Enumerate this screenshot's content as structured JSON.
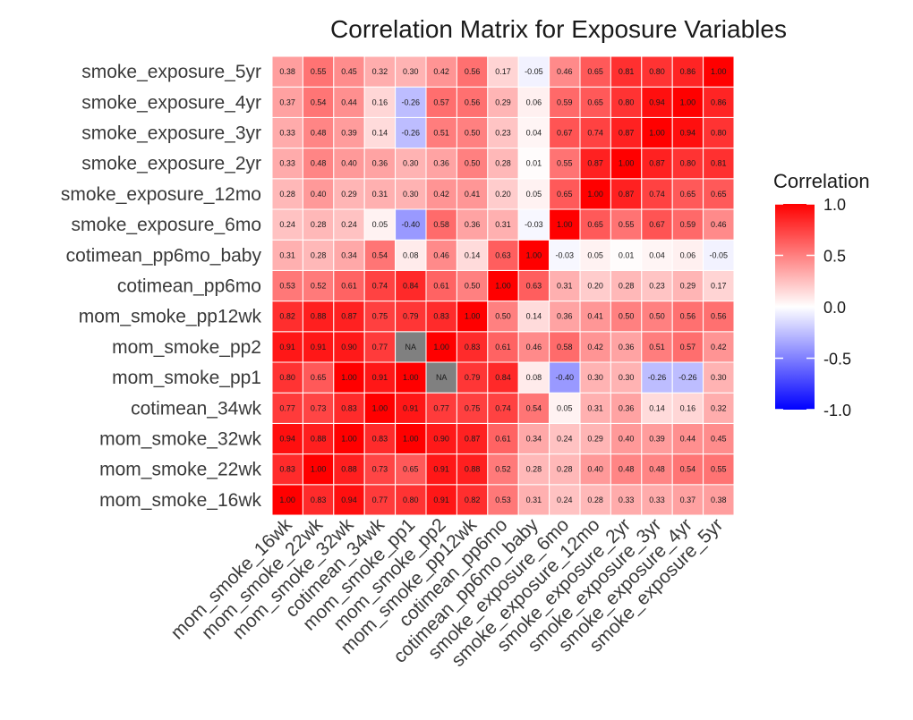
{
  "chart_data": {
    "type": "heatmap",
    "title": "Correlation Matrix for Exposure Variables",
    "variables": [
      "mom_smoke_16wk",
      "mom_smoke_22wk",
      "mom_smoke_32wk",
      "cotimean_34wk",
      "mom_smoke_pp1",
      "mom_smoke_pp2",
      "mom_smoke_pp12wk",
      "cotimean_pp6mo",
      "cotimean_pp6mo_baby",
      "smoke_exposure_6mo",
      "smoke_exposure_12mo",
      "smoke_exposure_2yr",
      "smoke_exposure_3yr",
      "smoke_exposure_4yr",
      "smoke_exposure_5yr"
    ],
    "cells": [
      [
        "1.00",
        "0.83",
        "0.94",
        "0.77",
        "0.80",
        "0.91",
        "0.82",
        "0.53",
        "0.31",
        "0.24",
        "0.28",
        "0.33",
        "0.33",
        "0.37",
        "0.38"
      ],
      [
        "0.83",
        "1.00",
        "0.88",
        "0.73",
        "0.65",
        "0.91",
        "0.88",
        "0.52",
        "0.28",
        "0.28",
        "0.40",
        "0.48",
        "0.48",
        "0.54",
        "0.55"
      ],
      [
        "0.94",
        "0.88",
        "1.00",
        "0.83",
        "1.00",
        "0.90",
        "0.87",
        "0.61",
        "0.34",
        "0.24",
        "0.29",
        "0.40",
        "0.39",
        "0.44",
        "0.45"
      ],
      [
        "0.77",
        "0.73",
        "0.83",
        "1.00",
        "0.91",
        "0.77",
        "0.75",
        "0.74",
        "0.54",
        "0.05",
        "0.31",
        "0.36",
        "0.14",
        "0.16",
        "0.32"
      ],
      [
        "0.80",
        "0.65",
        "1.00",
        "0.91",
        "1.00",
        "NA",
        "0.79",
        "0.84",
        "0.08",
        "-0.40",
        "0.30",
        "0.30",
        "-0.26",
        "-0.26",
        "0.30"
      ],
      [
        "0.91",
        "0.91",
        "0.90",
        "0.77",
        "NA",
        "1.00",
        "0.83",
        "0.61",
        "0.46",
        "0.58",
        "0.42",
        "0.36",
        "0.51",
        "0.57",
        "0.42"
      ],
      [
        "0.82",
        "0.88",
        "0.87",
        "0.75",
        "0.79",
        "0.83",
        "1.00",
        "0.50",
        "0.14",
        "0.36",
        "0.41",
        "0.50",
        "0.50",
        "0.56",
        "0.56"
      ],
      [
        "0.53",
        "0.52",
        "0.61",
        "0.74",
        "0.84",
        "0.61",
        "0.50",
        "1.00",
        "0.63",
        "0.31",
        "0.20",
        "0.28",
        "0.23",
        "0.29",
        "0.17"
      ],
      [
        "0.31",
        "0.28",
        "0.34",
        "0.54",
        "0.08",
        "0.46",
        "0.14",
        "0.63",
        "1.00",
        "-0.03",
        "0.05",
        "0.01",
        "0.04",
        "0.06",
        "-0.05"
      ],
      [
        "0.24",
        "0.28",
        "0.24",
        "0.05",
        "-0.40",
        "0.58",
        "0.36",
        "0.31",
        "-0.03",
        "1.00",
        "0.65",
        "0.55",
        "0.67",
        "0.59",
        "0.46"
      ],
      [
        "0.28",
        "0.40",
        "0.29",
        "0.31",
        "0.30",
        "0.42",
        "0.41",
        "0.20",
        "0.05",
        "0.65",
        "1.00",
        "0.87",
        "0.74",
        "0.65",
        "0.65"
      ],
      [
        "0.33",
        "0.48",
        "0.40",
        "0.36",
        "0.30",
        "0.36",
        "0.50",
        "0.28",
        "0.01",
        "0.55",
        "0.87",
        "1.00",
        "0.87",
        "0.80",
        "0.81"
      ],
      [
        "0.33",
        "0.48",
        "0.39",
        "0.14",
        "-0.26",
        "0.51",
        "0.50",
        "0.23",
        "0.04",
        "0.67",
        "0.74",
        "0.87",
        "1.00",
        "0.94",
        "0.80"
      ],
      [
        "0.37",
        "0.54",
        "0.44",
        "0.16",
        "-0.26",
        "0.57",
        "0.56",
        "0.29",
        "0.06",
        "0.59",
        "0.65",
        "0.80",
        "0.94",
        "1.00",
        "0.86"
      ],
      [
        "0.38",
        "0.55",
        "0.45",
        "0.32",
        "0.30",
        "0.42",
        "0.56",
        "0.17",
        "-0.05",
        "0.46",
        "0.65",
        "0.81",
        "0.80",
        "0.86",
        "1.00"
      ]
    ],
    "legend": {
      "title": "Correlation",
      "ticks": [
        "1.0",
        "0.5",
        "0.0",
        "-0.5",
        "-1.0"
      ],
      "range": [
        -1,
        1
      ],
      "colors": {
        "low": "#0000ff",
        "mid": "#ffffff",
        "high": "#ff0000",
        "na": "#808080"
      }
    }
  }
}
